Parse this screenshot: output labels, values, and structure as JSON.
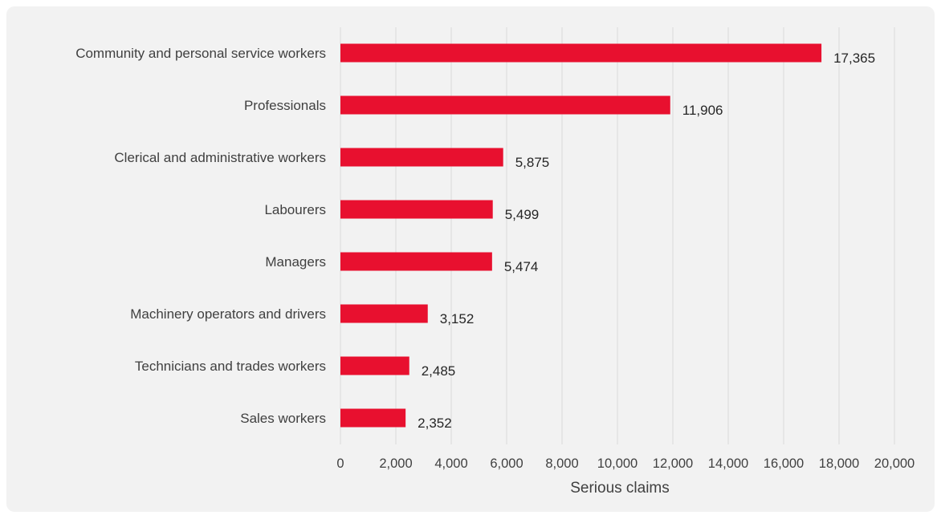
{
  "chart_data": {
    "type": "bar",
    "orientation": "horizontal",
    "title": "",
    "xlabel": "Serious claims",
    "ylabel": "",
    "xlim": [
      0,
      20000
    ],
    "x_ticks": [
      0,
      2000,
      4000,
      6000,
      8000,
      10000,
      12000,
      14000,
      16000,
      18000,
      20000
    ],
    "x_tick_labels": [
      "0",
      "2,000",
      "4,000",
      "6,000",
      "8,000",
      "10,000",
      "12,000",
      "14,000",
      "16,000",
      "18,000",
      "20,000"
    ],
    "grid": "vertical",
    "legend": "none",
    "bar_color": "#e8102f",
    "categories": [
      "Community and personal service workers",
      "Professionals",
      "Clerical and administrative workers",
      "Labourers",
      "Managers",
      "Machinery operators and drivers",
      "Technicians and trades workers",
      "Sales workers"
    ],
    "values": [
      17365,
      11906,
      5875,
      5499,
      5474,
      3152,
      2485,
      2352
    ],
    "value_labels": [
      "17,365",
      "11,906",
      "5,875",
      "5,499",
      "5,474",
      "3,152",
      "2,485",
      "2,352"
    ]
  }
}
